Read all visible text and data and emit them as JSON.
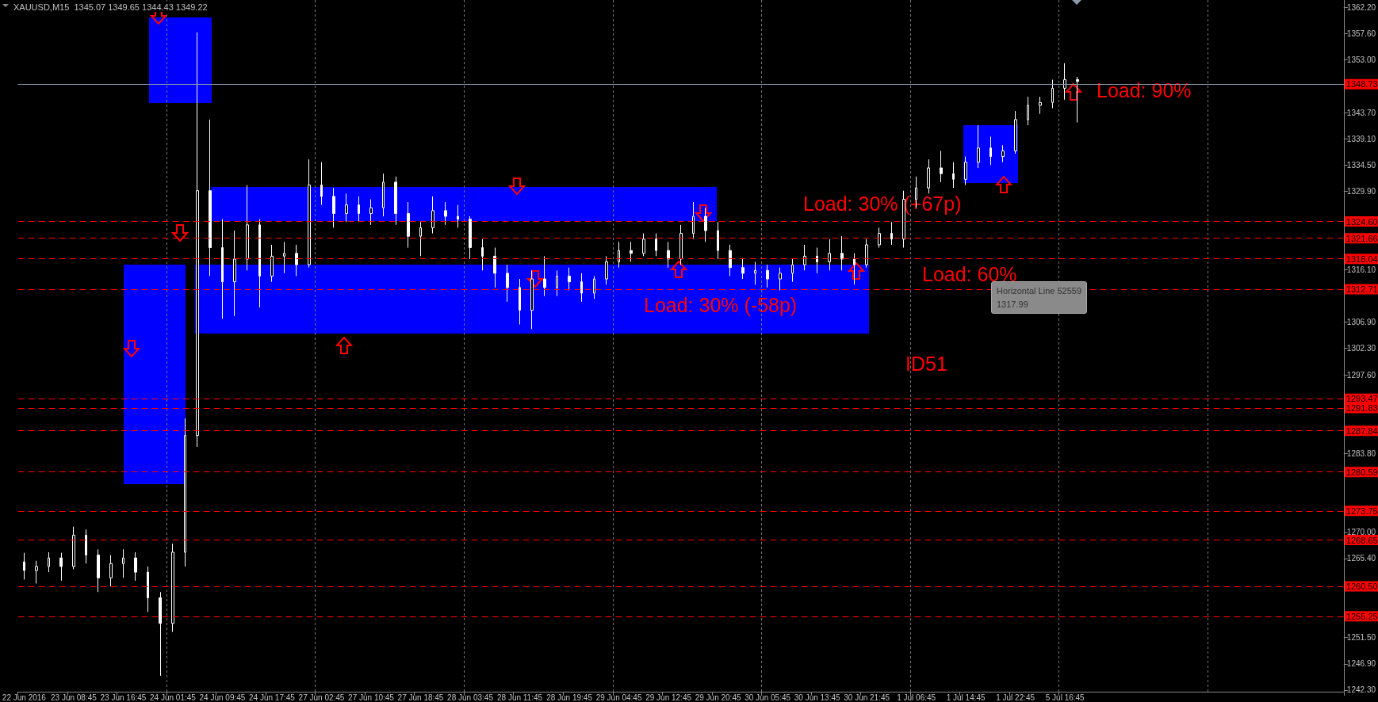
{
  "chart_data": {
    "type": "candlestick",
    "title": "XAUUSD,M15  1345.07 1349.65 1344.43 1349.22",
    "categories": [
      "22 Jun 2016",
      null,
      null,
      null,
      "23 Jun 08:45",
      null,
      null,
      null,
      "23 Jun 16:45",
      null,
      null,
      null,
      "24 Jun 01:45",
      null,
      null,
      null,
      "24 Jun 09:45",
      null,
      null,
      null,
      "24 Jun 17:45",
      null,
      null,
      null,
      "27 Jun 02:45",
      null,
      null,
      null,
      "27 Jun 10:45",
      null,
      null,
      null,
      "27 Jun 18:45",
      null,
      null,
      null,
      "28 Jun 03:45",
      null,
      null,
      null,
      "28 Jun 11:45",
      null,
      null,
      null,
      "28 Jun 19:45",
      null,
      null,
      null,
      "29 Jun 04:45",
      null,
      null,
      null,
      "29 Jun 12:45",
      null,
      null,
      null,
      "29 Jun 20:45",
      null,
      null,
      null,
      "30 Jun 05:45",
      null,
      null,
      null,
      "30 Jun 13:45",
      null,
      null,
      null,
      "30 Jun 21:45",
      null,
      null,
      null,
      "1 Jul 06:45",
      null,
      null,
      null,
      "1 Jul 14:45",
      null,
      null,
      null,
      "1 Jul 22:45",
      null,
      null,
      null,
      "5 Jul 16:45",
      null,
      null,
      null,
      null,
      null,
      null,
      null,
      null,
      null,
      null,
      null,
      null,
      null,
      null,
      null,
      null,
      null,
      null,
      null,
      null,
      null,
      null
    ],
    "ohlc": [
      [
        1264.8,
        1266.4,
        1261.7,
        1263.3
      ],
      [
        1263.3,
        1265.0,
        1261.0,
        1264.0
      ],
      [
        1264.0,
        1266.5,
        1263.0,
        1265.5
      ],
      [
        1265.5,
        1266.4,
        1261.5,
        1264.0
      ],
      [
        1264.0,
        1271.0,
        1263.5,
        1269.5
      ],
      [
        1269.5,
        1270.5,
        1264.5,
        1266.0
      ],
      [
        1266.0,
        1267.0,
        1259.5,
        1262.0
      ],
      [
        1262.0,
        1266.0,
        1260.5,
        1264.5
      ],
      [
        1264.5,
        1267.0,
        1262.0,
        1265.5
      ],
      [
        1265.5,
        1266.5,
        1261.5,
        1263.0
      ],
      [
        1263.0,
        1264.0,
        1256.0,
        1258.5
      ],
      [
        1258.5,
        1259.5,
        1244.8,
        1254.0
      ],
      [
        1254.0,
        1268.0,
        1252.5,
        1266.5
      ],
      [
        1266.5,
        1290.0,
        1264.0,
        1287.0
      ],
      [
        1287.0,
        1357.8,
        1285.0,
        1330.0
      ],
      [
        1330.0,
        1342.5,
        1315.0,
        1320.0
      ],
      [
        1320.0,
        1325.0,
        1307.5,
        1314.0
      ],
      [
        1314.0,
        1323.0,
        1308.0,
        1318.0
      ],
      [
        1318.0,
        1331.0,
        1316.0,
        1324.0
      ],
      [
        1324.0,
        1325.0,
        1309.5,
        1315.0
      ],
      [
        1315.0,
        1320.5,
        1314.0,
        1318.5
      ],
      [
        1318.5,
        1321.0,
        1315.5,
        1319.0
      ],
      [
        1319.0,
        1320.5,
        1315.0,
        1317.0
      ],
      [
        1317.0,
        1335.5,
        1316.5,
        1331.0
      ],
      [
        1331.0,
        1335.0,
        1327.5,
        1329.0
      ],
      [
        1329.0,
        1330.5,
        1323.5,
        1326.0
      ],
      [
        1326.0,
        1329.5,
        1324.5,
        1327.5
      ],
      [
        1327.5,
        1329.0,
        1324.5,
        1326.0
      ],
      [
        1326.0,
        1328.5,
        1324.0,
        1327.0
      ],
      [
        1327.0,
        1333.0,
        1325.5,
        1331.5
      ],
      [
        1331.5,
        1332.5,
        1324.0,
        1326.0
      ],
      [
        1326.0,
        1328.0,
        1320.0,
        1322.0
      ],
      [
        1322.0,
        1324.5,
        1318.5,
        1323.5
      ],
      [
        1323.5,
        1329.0,
        1322.5,
        1326.5
      ],
      [
        1326.5,
        1328.0,
        1324.0,
        1325.5
      ],
      [
        1325.5,
        1327.5,
        1323.5,
        1325.0
      ],
      [
        1325.0,
        1325.5,
        1318.0,
        1320.0
      ],
      [
        1320.0,
        1321.5,
        1316.0,
        1318.5
      ],
      [
        1318.5,
        1320.0,
        1313.0,
        1315.5
      ],
      [
        1315.5,
        1317.0,
        1310.5,
        1313.0
      ],
      [
        1313.0,
        1314.5,
        1306.5,
        1309.0
      ],
      [
        1309.0,
        1316.0,
        1305.7,
        1314.5
      ],
      [
        1314.5,
        1318.5,
        1311.5,
        1313.0
      ],
      [
        1313.0,
        1316.0,
        1311.5,
        1315.0
      ],
      [
        1315.0,
        1316.5,
        1312.5,
        1314.0
      ],
      [
        1314.0,
        1315.5,
        1310.5,
        1312.0
      ],
      [
        1312.0,
        1315.0,
        1311.0,
        1314.5
      ],
      [
        1314.5,
        1318.5,
        1313.5,
        1317.5
      ],
      [
        1317.5,
        1321.0,
        1316.5,
        1319.5
      ],
      [
        1319.5,
        1321.0,
        1317.5,
        1319.0
      ],
      [
        1319.0,
        1322.5,
        1318.5,
        1321.5
      ],
      [
        1321.5,
        1322.5,
        1318.5,
        1319.5
      ],
      [
        1319.5,
        1321.0,
        1316.5,
        1318.0
      ],
      [
        1318.0,
        1324.0,
        1317.0,
        1322.5
      ],
      [
        1322.5,
        1328.0,
        1321.5,
        1325.5
      ],
      [
        1325.5,
        1327.0,
        1321.0,
        1323.0
      ],
      [
        1323.0,
        1324.5,
        1318.0,
        1319.5
      ],
      [
        1319.5,
        1320.5,
        1315.0,
        1316.5
      ],
      [
        1316.5,
        1318.0,
        1314.5,
        1315.5
      ],
      [
        1315.5,
        1317.5,
        1313.5,
        1316.0
      ],
      [
        1316.0,
        1317.0,
        1313.0,
        1314.5
      ],
      [
        1314.5,
        1316.5,
        1312.5,
        1315.5
      ],
      [
        1315.5,
        1318.0,
        1314.0,
        1317.0
      ],
      [
        1317.0,
        1320.5,
        1316.0,
        1318.5
      ],
      [
        1318.5,
        1320.0,
        1315.5,
        1317.5
      ],
      [
        1317.5,
        1321.5,
        1316.0,
        1319.0
      ],
      [
        1319.0,
        1322.0,
        1316.0,
        1318.0
      ],
      [
        1318.0,
        1319.0,
        1313.5,
        1317.0
      ],
      [
        1317.0,
        1321.5,
        1316.5,
        1320.5
      ],
      [
        1320.5,
        1323.5,
        1320.0,
        1322.5
      ],
      [
        1322.5,
        1324.5,
        1320.5,
        1321.5
      ],
      [
        1321.5,
        1330.0,
        1320.0,
        1328.5
      ],
      [
        1328.5,
        1332.5,
        1327.0,
        1330.5
      ],
      [
        1330.5,
        1335.5,
        1329.5,
        1334.0
      ],
      [
        1334.0,
        1337.0,
        1331.5,
        1333.0
      ],
      [
        1333.0,
        1335.0,
        1330.5,
        1332.0
      ],
      [
        1332.0,
        1336.0,
        1331.0,
        1335.0
      ],
      [
        1335.0,
        1341.5,
        1334.0,
        1337.5
      ],
      [
        1337.5,
        1339.5,
        1334.5,
        1336.0
      ],
      [
        1336.0,
        1338.0,
        1335.0,
        1337.0
      ],
      [
        1337.0,
        1344.0,
        1336.5,
        1342.5
      ],
      [
        1342.5,
        1346.5,
        1341.5,
        1345.0
      ],
      [
        1345.0,
        1346.5,
        1343.5,
        1345.5
      ],
      [
        1345.5,
        1349.5,
        1344.5,
        1348.0
      ],
      [
        1348.0,
        1352.4,
        1346.0,
        1349.5
      ],
      [
        1349.5,
        1350.0,
        1342.0,
        1349.2
      ],
      null,
      null,
      null,
      null,
      null,
      null,
      null,
      null,
      null,
      null,
      null,
      null,
      null,
      null,
      null,
      null,
      null,
      null,
      null,
      null,
      null
    ],
    "color": "#ffffff",
    "ylim": [
      1242.0,
      1363.5
    ],
    "yticks": [
      {
        "value": 1242.3,
        "label": "1242.30"
      },
      {
        "value": 1246.9,
        "label": "1246.90"
      },
      {
        "value": 1251.5,
        "label": "1251.50"
      },
      {
        "value": 1265.4,
        "label": "1265.40"
      },
      {
        "value": 1270.0,
        "label": "1270.00"
      },
      {
        "value": 1283.8,
        "label": "1283.80"
      },
      {
        "value": 1297.6,
        "label": "1297.60"
      },
      {
        "value": 1302.3,
        "label": "1302.30"
      },
      {
        "value": 1306.9,
        "label": "1306.90"
      },
      {
        "value": 1316.1,
        "label": "1316.10"
      },
      {
        "value": 1329.9,
        "label": "1329.90"
      },
      {
        "value": 1334.5,
        "label": "1334.50"
      },
      {
        "value": 1339.1,
        "label": "1339.10"
      },
      {
        "value": 1343.7,
        "label": "1343.70"
      },
      {
        "value": 1353.0,
        "label": "1353.00"
      },
      {
        "value": 1357.6,
        "label": "1357.60"
      },
      {
        "value": 1362.2,
        "label": "1362.20"
      }
    ],
    "grid": "x",
    "ref_lines": [
      {
        "axis": "y",
        "value": 1348.73,
        "label": "1348.73",
        "color": "#8899aa",
        "line_style": "solid"
      },
      {
        "axis": "y",
        "value": 1324.6,
        "label": "1324.60",
        "color": "#ff0000",
        "line_style": "dashed"
      },
      {
        "axis": "y",
        "value": 1321.66,
        "label": "1321.66",
        "color": "#ff0000",
        "line_style": "dashed"
      },
      {
        "axis": "y",
        "value": 1318.04,
        "label": "1318.04",
        "color": "#ff0000",
        "line_style": "dashed"
      },
      {
        "axis": "y",
        "value": 1312.71,
        "label": "1312.71",
        "color": "#ff0000",
        "line_style": "dashed"
      },
      {
        "axis": "y",
        "value": 1293.47,
        "label": "1293.47",
        "color": "#ff0000",
        "line_style": "dashed"
      },
      {
        "axis": "y",
        "value": 1291.83,
        "label": "1291.83",
        "color": "#ff0000",
        "line_style": "dashed"
      },
      {
        "axis": "y",
        "value": 1287.84,
        "label": "1287.84",
        "color": "#ff0000",
        "line_style": "dashed"
      },
      {
        "axis": "y",
        "value": 1280.59,
        "label": "1280.59",
        "color": "#ff0000",
        "line_style": "dashed"
      },
      {
        "axis": "y",
        "value": 1273.75,
        "label": "1273.75",
        "color": "#ff0000",
        "line_style": "dashed"
      },
      {
        "axis": "y",
        "value": 1268.65,
        "label": "1268.65",
        "color": "#ff0000",
        "line_style": "dashed"
      },
      {
        "axis": "y",
        "value": 1260.5,
        "label": "1260.50",
        "color": "#ff0000",
        "line_style": "dashed"
      },
      {
        "axis": "y",
        "value": 1255.25,
        "label": "1255.25",
        "color": "#ff0000",
        "line_style": "dashed"
      }
    ],
    "annotations": [
      "Load: 90%",
      "Load: 30% (+67p)",
      "Load: 60%",
      "Load: 30% (-58p)",
      "ID51",
      "Horizontal Line 52559\n1317.99"
    ]
  }
}
